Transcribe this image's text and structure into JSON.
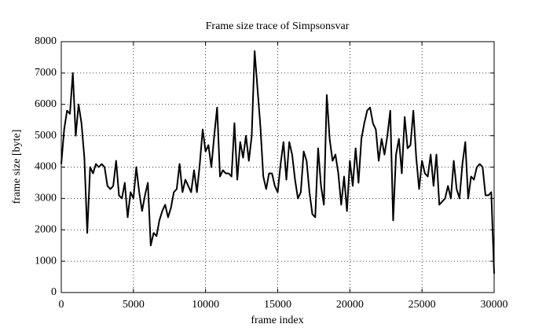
{
  "chart_data": {
    "type": "line",
    "title": "Frame size trace of Simpsonsvar",
    "xlabel": "frame index",
    "ylabel": "frame size [byte]",
    "x": [
      0,
      200,
      400,
      600,
      800,
      1000,
      1200,
      1400,
      1600,
      1800,
      2000,
      2200,
      2400,
      2600,
      2800,
      3000,
      3200,
      3400,
      3600,
      3800,
      4000,
      4200,
      4400,
      4600,
      4800,
      5000,
      5200,
      5400,
      5600,
      5800,
      6000,
      6200,
      6400,
      6600,
      6800,
      7000,
      7200,
      7400,
      7600,
      7800,
      8000,
      8200,
      8400,
      8600,
      8800,
      9000,
      9200,
      9400,
      9600,
      9800,
      10000,
      10200,
      10400,
      10600,
      10800,
      11000,
      11200,
      11400,
      11600,
      11800,
      12000,
      12200,
      12400,
      12600,
      12800,
      13000,
      13200,
      13400,
      13600,
      13800,
      14000,
      14200,
      14400,
      14600,
      14800,
      15000,
      15200,
      15400,
      15600,
      15800,
      16000,
      16200,
      16400,
      16600,
      16800,
      17000,
      17200,
      17400,
      17600,
      17800,
      18000,
      18200,
      18400,
      18600,
      18800,
      19000,
      19200,
      19400,
      19600,
      19800,
      20000,
      20200,
      20400,
      20600,
      20800,
      21000,
      21200,
      21400,
      21600,
      21800,
      22000,
      22200,
      22400,
      22600,
      22800,
      23000,
      23200,
      23400,
      23600,
      23800,
      24000,
      24200,
      24400,
      24600,
      24800,
      25000,
      25200,
      25400,
      25600,
      25800,
      26000,
      26200,
      26400,
      26600,
      26800,
      27000,
      27200,
      27400,
      27600,
      27800,
      28000,
      28200,
      28400,
      28600,
      28800,
      29000,
      29200,
      29400,
      29600,
      29800,
      30000
    ],
    "series": [
      {
        "name": "frame size",
        "color": "#000000",
        "values": [
          4100,
          5200,
          5800,
          5700,
          7000,
          5000,
          6000,
          5400,
          4300,
          1900,
          4000,
          3800,
          4100,
          4000,
          4100,
          4000,
          3400,
          3300,
          3400,
          4200,
          3100,
          3000,
          3500,
          2400,
          3200,
          3000,
          4000,
          3200,
          2600,
          3100,
          3500,
          1500,
          1900,
          1800,
          2300,
          2600,
          2800,
          2400,
          2700,
          3200,
          3300,
          4100,
          3200,
          3600,
          3400,
          3200,
          3900,
          3200,
          4100,
          5200,
          4500,
          4700,
          4000,
          5000,
          5900,
          3700,
          3900,
          3800,
          3800,
          3700,
          5400,
          3600,
          4800,
          4300,
          5000,
          4200,
          5000,
          7700,
          6500,
          5300,
          3700,
          3300,
          3800,
          3800,
          3400,
          3200,
          4100,
          4800,
          3600,
          4800,
          4400,
          3600,
          3000,
          3200,
          4500,
          4200,
          3200,
          2500,
          2400,
          4600,
          3400,
          2800,
          6300,
          4900,
          4200,
          4400,
          3800,
          2800,
          3700,
          2600,
          4200,
          3400,
          4600,
          3500,
          4900,
          5400,
          5800,
          5900,
          5400,
          5200,
          4200,
          4900,
          4400,
          5000,
          5800,
          2300,
          4400,
          4900,
          3800,
          5600,
          4600,
          4700,
          5800,
          4300,
          3300,
          4200,
          3800,
          3700,
          4400,
          3400,
          4400,
          2800,
          2900,
          3000,
          3400,
          3000,
          4200,
          3300,
          3000,
          4100,
          4800,
          3000,
          3700,
          3600,
          4000,
          4100,
          4000,
          3100,
          3100,
          3200,
          600
        ]
      }
    ],
    "xlim": [
      0,
      30000
    ],
    "ylim": [
      0,
      8000
    ],
    "xticks": [
      0,
      5000,
      10000,
      15000,
      20000,
      25000,
      30000
    ],
    "yticks": [
      0,
      1000,
      2000,
      3000,
      4000,
      5000,
      6000,
      7000,
      8000
    ],
    "grid": true
  }
}
